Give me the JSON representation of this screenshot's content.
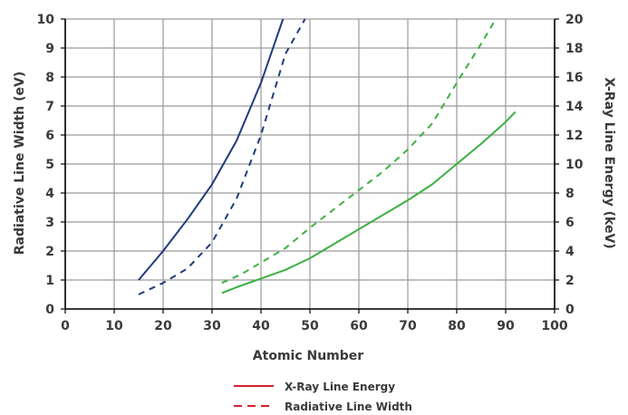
{
  "chart_data": {
    "type": "line",
    "title": "",
    "xlabel": "Atomic Number",
    "ylabel_left": "Radiative Line Width (eV)",
    "ylabel_right": "X-Ray Line Energy (keV)",
    "xlim": [
      0,
      100
    ],
    "ylim_left": [
      0,
      10
    ],
    "ylim_right": [
      0,
      20
    ],
    "x_ticks": [
      "0",
      "10",
      "20",
      "30",
      "40",
      "50",
      "60",
      "70",
      "80",
      "90",
      "100"
    ],
    "y_left_ticks": [
      "0",
      "1",
      "2",
      "3",
      "4",
      "5",
      "6",
      "7",
      "8",
      "9",
      "10"
    ],
    "y_right_ticks": [
      "0",
      "2",
      "4",
      "6",
      "8",
      "10",
      "12",
      "14",
      "16",
      "18",
      "20"
    ],
    "grid": true,
    "legend": {
      "placement": "bottom-center",
      "entries": [
        {
          "label": "X-Ray Line Energy",
          "style": "solid"
        },
        {
          "label": "Radiative Line Width",
          "style": "dashed"
        }
      ]
    },
    "series": [
      {
        "axis": "left",
        "style": "solid",
        "color": "#1f3b7a",
        "points": [
          [
            15,
            1.0
          ],
          [
            20,
            2.0
          ],
          [
            25,
            3.1
          ],
          [
            30,
            4.3
          ],
          [
            35,
            5.8
          ],
          [
            40,
            7.8
          ],
          [
            44.5,
            10.0
          ]
        ]
      },
      {
        "axis": "left",
        "style": "dashed",
        "color": "#1f3b7a",
        "points": [
          [
            15,
            0.5
          ],
          [
            20,
            0.9
          ],
          [
            25,
            1.4
          ],
          [
            30,
            2.3
          ],
          [
            35,
            3.8
          ],
          [
            40,
            6.0
          ],
          [
            45,
            8.8
          ],
          [
            49,
            10.0
          ]
        ]
      },
      {
        "axis": "right",
        "style": "solid",
        "color": "#3cb043",
        "points": [
          [
            32,
            1.1
          ],
          [
            35,
            1.5
          ],
          [
            40,
            2.1
          ],
          [
            45,
            2.7
          ],
          [
            50,
            3.5
          ],
          [
            55,
            4.5
          ],
          [
            60,
            5.5
          ],
          [
            65,
            6.5
          ],
          [
            70,
            7.5
          ],
          [
            75,
            8.6
          ],
          [
            80,
            10.0
          ],
          [
            85,
            11.4
          ],
          [
            90,
            12.9
          ],
          [
            92,
            13.6
          ]
        ]
      },
      {
        "axis": "right",
        "style": "dashed",
        "color": "#3cb043",
        "points": [
          [
            32,
            1.8
          ],
          [
            36,
            2.4
          ],
          [
            40,
            3.2
          ],
          [
            45,
            4.2
          ],
          [
            50,
            5.6
          ],
          [
            55,
            6.9
          ],
          [
            60,
            8.2
          ],
          [
            65,
            9.5
          ],
          [
            70,
            11.0
          ],
          [
            75,
            12.8
          ],
          [
            80,
            15.6
          ],
          [
            85,
            18.3
          ],
          [
            88,
            20.0
          ]
        ]
      }
    ],
    "legend_colors": {
      "sample": "#d6202a"
    },
    "axis_color": "#000000",
    "grid_color": "#9a9a9a"
  }
}
